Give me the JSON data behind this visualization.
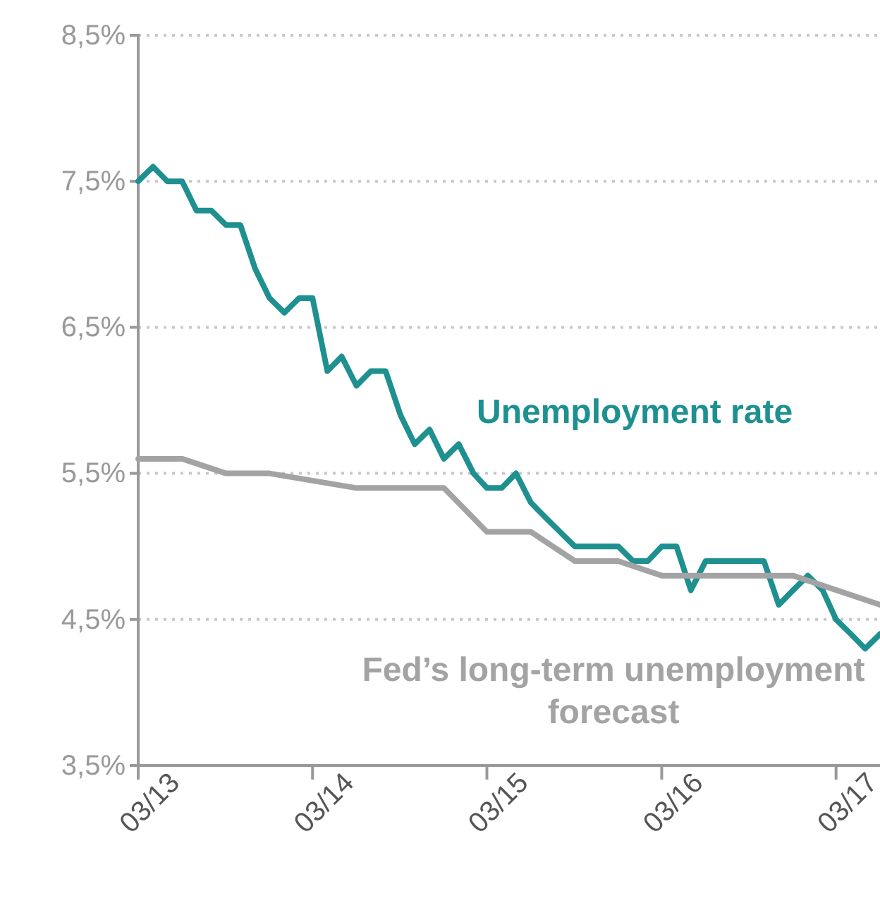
{
  "chart_data": {
    "type": "line",
    "xlim": [
      "2013-03",
      "2017-06"
    ],
    "ylim": [
      3.5,
      8.5
    ],
    "yticks": [
      {
        "value": 3.5,
        "label": "3,5%"
      },
      {
        "value": 4.5,
        "label": "4,5%"
      },
      {
        "value": 5.5,
        "label": "5,5%"
      },
      {
        "value": 6.5,
        "label": "6,5%"
      },
      {
        "value": 7.5,
        "label": "7,5%"
      },
      {
        "value": 8.5,
        "label": "8,5%"
      }
    ],
    "xticks": [
      {
        "value": "2013-03",
        "label": "03/13"
      },
      {
        "value": "2014-03",
        "label": "03/14"
      },
      {
        "value": "2015-03",
        "label": "03/15"
      },
      {
        "value": "2016-03",
        "label": "03/16"
      },
      {
        "value": "2017-03",
        "label": "03/17"
      }
    ],
    "grid": "y",
    "legend": false,
    "marker": "none",
    "line_style": "solid",
    "series": [
      {
        "name": "Unemployment rate",
        "color": "#1f9090",
        "x": [
          "2013-03",
          "2013-04",
          "2013-05",
          "2013-06",
          "2013-07",
          "2013-08",
          "2013-09",
          "2013-10",
          "2013-11",
          "2013-12",
          "2014-01",
          "2014-02",
          "2014-03",
          "2014-04",
          "2014-05",
          "2014-06",
          "2014-07",
          "2014-08",
          "2014-09",
          "2014-10",
          "2014-11",
          "2014-12",
          "2015-01",
          "2015-02",
          "2015-03",
          "2015-04",
          "2015-05",
          "2015-06",
          "2015-07",
          "2015-08",
          "2015-09",
          "2015-10",
          "2015-11",
          "2015-12",
          "2016-01",
          "2016-02",
          "2016-03",
          "2016-04",
          "2016-05",
          "2016-06",
          "2016-07",
          "2016-08",
          "2016-09",
          "2016-10",
          "2016-11",
          "2016-12",
          "2017-01",
          "2017-02",
          "2017-03",
          "2017-04",
          "2017-05",
          "2017-06"
        ],
        "values": [
          7.5,
          7.6,
          7.5,
          7.5,
          7.3,
          7.3,
          7.2,
          7.2,
          6.9,
          6.7,
          6.6,
          6.7,
          6.7,
          6.2,
          6.3,
          6.1,
          6.2,
          6.2,
          5.9,
          5.7,
          5.8,
          5.6,
          5.7,
          5.5,
          5.4,
          5.4,
          5.5,
          5.3,
          5.2,
          5.1,
          5.0,
          5.0,
          5.0,
          5.0,
          4.9,
          4.9,
          5.0,
          5.0,
          4.7,
          4.9,
          4.9,
          4.9,
          4.9,
          4.9,
          4.6,
          4.7,
          4.8,
          4.7,
          4.5,
          4.4,
          4.3,
          4.4
        ]
      },
      {
        "name": "Fed’s long-term unemployment forecast",
        "color": "#a3a3a3",
        "x": [
          "2013-03",
          "2013-06",
          "2013-09",
          "2013-12",
          "2014-06",
          "2014-09",
          "2014-12",
          "2015-03",
          "2015-06",
          "2015-09",
          "2015-12",
          "2016-03",
          "2016-12",
          "2017-06"
        ],
        "values": [
          5.6,
          5.6,
          5.5,
          5.5,
          5.4,
          5.4,
          5.4,
          5.1,
          5.1,
          4.9,
          4.9,
          4.8,
          4.8,
          4.6
        ]
      }
    ]
  }
}
